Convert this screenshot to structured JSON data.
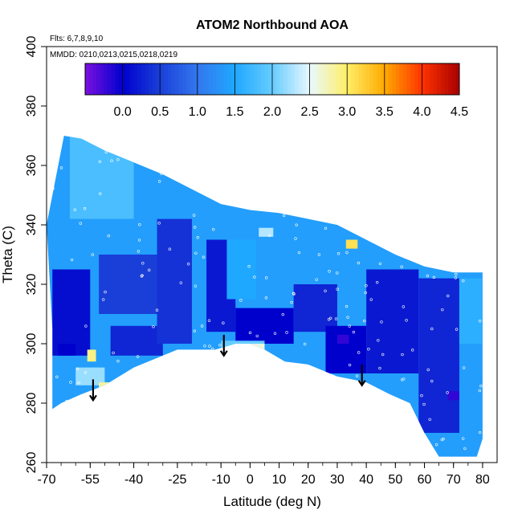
{
  "chart_data": {
    "type": "heatmap",
    "title": "ATOM2 Northbound AOA",
    "annotations": [
      "Flts: 6,7,8,9,10",
      "MMDD: 0210,0213,0215,0218,0219"
    ],
    "xlabel": "Latitude (deg N)",
    "ylabel": "Theta (C)",
    "xlim": [
      -70,
      85
    ],
    "ylim": [
      260,
      400
    ],
    "x_ticks": [
      -70,
      -55,
      -40,
      -25,
      -10,
      0,
      10,
      20,
      30,
      40,
      50,
      60,
      70,
      80
    ],
    "y_ticks": [
      260,
      280,
      300,
      320,
      340,
      360,
      380,
      400
    ],
    "colorbar": {
      "range": [
        -0.5,
        4.5
      ],
      "ticks": [
        "0.0",
        "0.5",
        "1.0",
        "1.5",
        "2.0",
        "2.5",
        "3.0",
        "3.5",
        "4.0",
        "4.5"
      ],
      "colors": [
        "#7b10e0",
        "#0000cd",
        "#1a3fd8",
        "#3377ee",
        "#1fa8ff",
        "#66ccff",
        "#e8f8ff",
        "#ffee66",
        "#ffaa00",
        "#ff3300",
        "#a80000"
      ]
    },
    "domain_top": [
      [
        -64,
        370
      ],
      [
        -58,
        369
      ],
      [
        -50,
        365
      ],
      [
        -40,
        361
      ],
      [
        -30,
        357
      ],
      [
        -20,
        352
      ],
      [
        -10,
        347
      ],
      [
        -5,
        346
      ],
      [
        0,
        345
      ],
      [
        10,
        344
      ],
      [
        20,
        342
      ],
      [
        30,
        340
      ],
      [
        40,
        335
      ],
      [
        50,
        330
      ],
      [
        60,
        326
      ],
      [
        70,
        324
      ],
      [
        80,
        324
      ]
    ],
    "domain_bottom": [
      [
        80,
        268
      ],
      [
        78,
        262
      ],
      [
        70,
        262
      ],
      [
        65,
        262
      ],
      [
        60,
        270
      ],
      [
        55,
        280
      ],
      [
        48,
        283
      ],
      [
        40,
        287
      ],
      [
        35,
        288
      ],
      [
        30,
        289
      ],
      [
        20,
        293
      ],
      [
        12,
        294
      ],
      [
        5,
        298
      ],
      [
        0,
        300
      ],
      [
        -5,
        300
      ],
      [
        -12,
        298
      ],
      [
        -25,
        298
      ],
      [
        -40,
        292
      ],
      [
        -50,
        286
      ],
      [
        -58,
        283
      ],
      [
        -65,
        280
      ],
      [
        -68,
        278
      ],
      [
        -68,
        305
      ],
      [
        -70,
        340
      ]
    ],
    "arrows": [
      {
        "lat": -54,
        "theta_start": 288,
        "theta_end": 281
      },
      {
        "lat": -9,
        "theta_start": 303,
        "theta_end": 296
      },
      {
        "lat": 38.5,
        "theta_start": 293,
        "theta_end": 286
      }
    ],
    "regions": [
      {
        "lat": [
          -70,
          85
        ],
        "theta": [
          260,
          400
        ],
        "value": 1.4
      },
      {
        "lat": [
          -68,
          -55
        ],
        "theta": [
          296,
          325
        ],
        "value": 0.1
      },
      {
        "lat": [
          -52,
          -28
        ],
        "theta": [
          310,
          330
        ],
        "value": 0.5
      },
      {
        "lat": [
          -48,
          -30
        ],
        "theta": [
          296,
          306
        ],
        "value": 0.3
      },
      {
        "lat": [
          -32,
          -20
        ],
        "theta": [
          300,
          342
        ],
        "value": 0.4
      },
      {
        "lat": [
          -15,
          -5
        ],
        "theta": [
          304,
          335
        ],
        "value": 0.2
      },
      {
        "lat": [
          -5,
          15
        ],
        "theta": [
          300,
          312
        ],
        "value": 0.0
      },
      {
        "lat": [
          15,
          30
        ],
        "theta": [
          304,
          320
        ],
        "value": 0.3
      },
      {
        "lat": [
          26,
          40
        ],
        "theta": [
          290,
          306
        ],
        "value": 0.0
      },
      {
        "lat": [
          40,
          58
        ],
        "theta": [
          290,
          325
        ],
        "value": 0.2
      },
      {
        "lat": [
          58,
          72
        ],
        "theta": [
          270,
          322
        ],
        "value": 0.3
      },
      {
        "lat": [
          72,
          80
        ],
        "theta": [
          300,
          322
        ],
        "value": 1.6
      },
      {
        "lat": [
          -62,
          -40
        ],
        "theta": [
          342,
          370
        ],
        "value": 1.8
      },
      {
        "lat": [
          -60,
          -50
        ],
        "theta": [
          286,
          292
        ],
        "value": 2.2
      },
      {
        "lat": [
          -10,
          5
        ],
        "theta": [
          298,
          301
        ],
        "value": 2.0
      },
      {
        "lat": [
          -52,
          -44
        ],
        "theta": [
          284,
          287
        ],
        "value": 2.8
      },
      {
        "lat": [
          -56,
          -53
        ],
        "theta": [
          294,
          298
        ],
        "value": 2.9
      },
      {
        "lat": [
          3,
          8
        ],
        "theta": [
          336,
          339
        ],
        "value": 2.3
      },
      {
        "lat": [
          0,
          5
        ],
        "theta": [
          298,
          300
        ],
        "value": 2.6
      },
      {
        "lat": [
          33,
          37
        ],
        "theta": [
          332,
          335
        ],
        "value": 3.1
      },
      {
        "lat": [
          30,
          34
        ],
        "theta": [
          300,
          303
        ],
        "value": -0.2
      },
      {
        "lat": [
          68,
          72
        ],
        "theta": [
          281,
          284
        ],
        "value": -0.2
      },
      {
        "lat": [
          -66,
          -60
        ],
        "theta": [
          296,
          300
        ],
        "value": 0.0
      },
      {
        "lat": [
          -8,
          2
        ],
        "theta": [
          315,
          335
        ],
        "value": 1.5
      }
    ]
  }
}
